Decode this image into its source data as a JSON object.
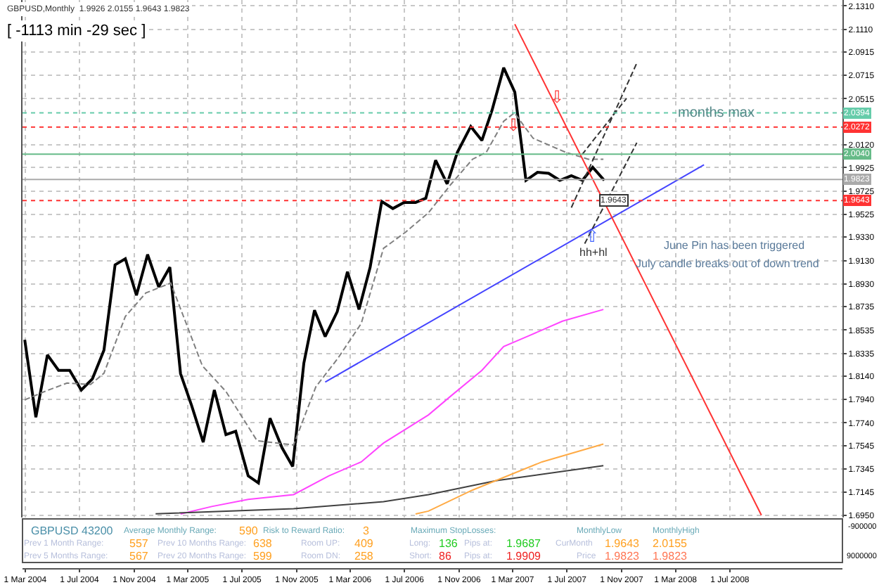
{
  "chart_data": {
    "type": "line",
    "title": "GBPUSD,Monthly  1.9926 2.0155 1.9643 1.9823",
    "subtitle": "[ -1113 min -29 sec ]",
    "xlim": [
      "2004-02-24",
      "2009-03-11"
    ],
    "ylim": [
      1.693,
      2.136
    ],
    "xticks": [
      {
        "value": "2004-03-01",
        "label": "1 Mar 2004"
      },
      {
        "value": "2004-07-01",
        "label": "1 Jul 2004"
      },
      {
        "value": "2004-11-01",
        "label": "1 Nov 2004"
      },
      {
        "value": "2005-03-01",
        "label": "1 Mar 2005"
      },
      {
        "value": "2005-07-01",
        "label": "1 Jul 2005"
      },
      {
        "value": "2005-11-01",
        "label": "1 Nov 2005"
      },
      {
        "value": "2006-03-01",
        "label": "1 Mar 2006"
      },
      {
        "value": "2006-07-01",
        "label": "1 Jul 2006"
      },
      {
        "value": "2006-11-01",
        "label": "1 Nov 2006"
      },
      {
        "value": "2007-03-01",
        "label": "1 Mar 2007"
      },
      {
        "value": "2007-07-01",
        "label": "1 Jul 2007"
      },
      {
        "value": "2007-11-01",
        "label": "1 Nov 2007"
      },
      {
        "value": "2008-03-01",
        "label": "1 Mar 2008"
      },
      {
        "value": "2008-07-01",
        "label": "1 Jul 2008"
      }
    ],
    "yticks": [
      {
        "value": 2.131,
        "label": "2.1310"
      },
      {
        "value": 2.111,
        "label": "2.1110"
      },
      {
        "value": 2.0915,
        "label": "2.0915"
      },
      {
        "value": 2.0715,
        "label": "2.0715"
      },
      {
        "value": 2.0515,
        "label": "2.0515"
      },
      {
        "value": 2.012,
        "label": "2.0120"
      },
      {
        "value": 1.9925,
        "label": "1.9925"
      },
      {
        "value": 1.9725,
        "label": "1.9725"
      },
      {
        "value": 1.9525,
        "label": "1.9525"
      },
      {
        "value": 1.933,
        "label": "1.9330"
      },
      {
        "value": 1.913,
        "label": "1.9130"
      },
      {
        "value": 1.893,
        "label": "1.8930"
      },
      {
        "value": 1.8735,
        "label": "1.8735"
      },
      {
        "value": 1.8535,
        "label": "1.8535"
      },
      {
        "value": 1.8335,
        "label": "1.8335"
      },
      {
        "value": 1.814,
        "label": "1.8140"
      },
      {
        "value": 1.794,
        "label": "1.7940"
      },
      {
        "value": 1.774,
        "label": "1.7740"
      },
      {
        "value": 1.7545,
        "label": "1.7545"
      },
      {
        "value": 1.7345,
        "label": "1.7345"
      },
      {
        "value": 1.7145,
        "label": "1.7145"
      },
      {
        "value": 1.695,
        "label": "1.6950"
      }
    ],
    "grid": true,
    "marker": "none",
    "series": [
      {
        "color": "#000000",
        "line_style": "solid",
        "x": [
          "2004-02-29",
          "2004-03-25",
          "2004-04-20",
          "2004-05-15",
          "2004-06-09",
          "2004-07-05",
          "2004-07-30",
          "2004-08-25",
          "2004-09-19",
          "2004-10-12",
          "2004-11-06",
          "2004-12-01",
          "2004-12-26",
          "2005-01-20",
          "2005-02-13",
          "2005-03-10",
          "2005-04-05",
          "2005-04-30",
          "2005-05-26",
          "2005-06-17",
          "2005-07-15",
          "2005-08-07",
          "2005-09-02",
          "2005-09-29",
          "2005-10-23",
          "2005-11-17",
          "2005-12-11",
          "2006-01-04",
          "2006-01-31",
          "2006-02-23",
          "2006-03-21",
          "2006-04-15",
          "2006-05-11",
          "2006-06-05",
          "2006-06-30",
          "2006-07-26",
          "2006-08-18",
          "2006-09-09",
          "2006-10-05",
          "2006-10-28",
          "2006-11-27",
          "2006-12-22",
          "2007-01-14",
          "2007-02-09",
          "2007-03-06",
          "2007-03-31",
          "2007-04-26",
          "2007-05-21",
          "2007-06-15",
          "2007-07-11",
          "2007-08-05",
          "2007-08-28",
          "2007-09-23"
        ],
        "values": [
          1.8451,
          1.7788,
          1.8322,
          1.819,
          1.819,
          1.8021,
          1.8117,
          1.8362,
          1.9093,
          1.9145,
          1.8832,
          1.9181,
          1.8904,
          1.9073,
          1.8162,
          1.7888,
          1.7575,
          1.8021,
          1.7639,
          1.7668,
          1.7286,
          1.7226,
          1.778,
          1.7527,
          1.7367,
          1.825,
          1.8704,
          1.8479,
          1.8692,
          1.9033,
          1.8711,
          1.9073,
          1.9635,
          1.9575,
          1.9627,
          1.9627,
          1.9663,
          1.9988,
          1.9786,
          2.0057,
          2.0277,
          2.0157,
          2.0418,
          2.078,
          2.0571,
          1.9816,
          1.9885,
          1.9876,
          1.9816,
          1.9856,
          1.9816,
          1.9928,
          1.9816
        ]
      },
      {
        "color": "#808080",
        "line_style": "dashed",
        "x": [
          "2004-02-29",
          "2004-04-14",
          "2004-06-03",
          "2004-07-26",
          "2004-08-25",
          "2004-10-12",
          "2004-11-27",
          "2005-01-22",
          "2005-04-03",
          "2005-05-26",
          "2005-08-04",
          "2005-10-25",
          "2005-12-14",
          "2006-02-01",
          "2006-03-26",
          "2006-05-15",
          "2006-07-04",
          "2006-08-24",
          "2006-10-13",
          "2006-12-01",
          "2007-01-01",
          "2007-02-09",
          "2007-03-05",
          "2007-04-16",
          "2007-06-28",
          "2007-08-18",
          "2007-09-21"
        ],
        "values": [
          1.7937,
          1.8009,
          1.8081,
          1.8069,
          1.8165,
          1.8651,
          1.8852,
          1.8937,
          1.8229,
          1.8009,
          1.7587,
          1.7551,
          1.8049,
          1.829,
          1.8591,
          1.9234,
          1.9374,
          1.9539,
          1.978,
          1.9997,
          2.0057,
          2.0322,
          2.0394,
          2.0177,
          2.0057,
          1.9997,
          1.9997
        ]
      },
      {
        "color": "#ff44ff",
        "line_style": "solid",
        "x": [
          "2005-02-13",
          "2005-04-24",
          "2005-07-15",
          "2005-10-25",
          "2006-01-12",
          "2006-03-26",
          "2006-05-15",
          "2006-08-24",
          "2006-10-13",
          "2006-12-22",
          "2007-02-09",
          "2007-04-10",
          "2007-06-21",
          "2007-09-21"
        ],
        "values": [
          1.696,
          1.7024,
          1.7085,
          1.7126,
          1.7286,
          1.7406,
          1.7567,
          1.7808,
          1.7969,
          1.819,
          1.8394,
          1.8491,
          1.8611,
          1.8711
        ]
      },
      {
        "color": "#404040",
        "line_style": "solid",
        "x": [
          "2004-12-19",
          "2005-10-25",
          "2006-05-15",
          "2006-08-24",
          "2007-01-24",
          "2007-09-21"
        ],
        "values": [
          1.6961,
          1.7005,
          1.7065,
          1.7126,
          1.7246,
          1.7374
        ]
      },
      {
        "color": "#ffaa44",
        "line_style": "solid",
        "x": [
          "2006-07-26",
          "2006-08-24",
          "2006-12-01",
          "2007-05-06",
          "2007-09-21"
        ],
        "values": [
          1.696,
          1.6985,
          1.7165,
          1.7406,
          1.7559
        ]
      },
      {
        "color": "#4444ff",
        "line_style": "solid",
        "x": [
          "2006-01-04",
          "2008-05-04"
        ],
        "values": [
          1.809,
          1.9949
        ]
      },
      {
        "color": "#ff3333",
        "line_style": "solid",
        "x": [
          "2007-03-06",
          "2008-09-10"
        ],
        "values": [
          2.1153,
          1.695
        ]
      },
      {
        "color": "#333333",
        "line_style": "dashed",
        "x": [
          "2007-07-11",
          "2007-12-05"
        ],
        "values": [
          1.9583,
          2.082
        ]
      },
      {
        "color": "#333333",
        "line_style": "dashed",
        "x": [
          "2007-08-04",
          "2007-11-12"
        ],
        "values": [
          2.0037,
          2.0518
        ]
      },
      {
        "color": "#333333",
        "line_style": "dashed",
        "x": [
          "2007-08-10",
          "2007-12-05"
        ],
        "values": [
          1.9274,
          2.0138
        ]
      }
    ],
    "ref_lines": [
      {
        "axis": "y",
        "value": 2.0394,
        "label": "2.0394",
        "color": "#66ccaa",
        "line_style": "dotted"
      },
      {
        "axis": "y",
        "value": 2.0272,
        "label": "2.0272",
        "color": "#ff3333",
        "line_style": "dotted"
      },
      {
        "axis": "y",
        "value": 2.004,
        "label": "2.0040",
        "color": "#66bb88",
        "line_style": "solid"
      },
      {
        "axis": "y",
        "value": 1.9823,
        "label": "1.9823",
        "color": "#aaaaaa",
        "line_style": "solid"
      },
      {
        "axis": "y",
        "value": 1.9643,
        "label": "1.9643",
        "color": "#ff3333",
        "line_style": "dotted"
      }
    ],
    "annotations": [
      {
        "text": "months max",
        "x": "2008-06-01",
        "y": 2.0394
      },
      {
        "text": "1.9643",
        "x": "2007-10-16",
        "y": 1.9643
      },
      "hh+hl",
      {
        "text": "⇩",
        "x": "2007-06-10",
        "y": 2.0527
      },
      {
        "text": "⇩",
        "x": "2007-03-02",
        "y": 2.029
      },
      {
        "text": "⇧",
        "x": "2007-08-28",
        "y": 1.9334
      },
      "June Pin has been triggered",
      "July candle breaks out of down trend",
      "GBPUSD 43200",
      "Average Monthly Range:",
      "590",
      "Risk to Reward Ratio:",
      "3",
      "Maximum StopLosses:",
      "MonthlyLow",
      "MonthlyHigh",
      "Prev 1 Month Range:",
      "557",
      "Prev 10 Months Range:",
      "638",
      "Room UP:",
      "409",
      "Long:",
      "136",
      "Pips at:",
      "1.9687",
      "CurMonth",
      "1.9643",
      "2.0155",
      "Prev 5 Months Range:",
      "567",
      "Prev 20 Months Range:",
      "599",
      "Room DN:",
      "258",
      "Short:",
      "86",
      "Pips at:",
      "1.9909",
      "Price",
      "1.9823",
      "1.9823",
      "-900000",
      "9000000"
    ]
  }
}
